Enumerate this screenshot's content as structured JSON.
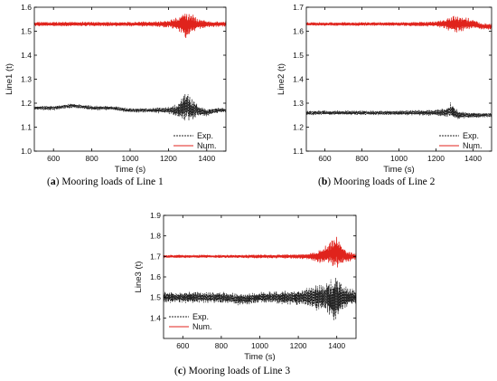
{
  "chart_data": [
    {
      "type": "line",
      "panel_label": "a",
      "caption": "Mooring loads of Line 1",
      "xlabel": "Time (s)",
      "ylabel": "Line1 (t)",
      "xlim": [
        500,
        1500
      ],
      "ylim": [
        1.0,
        1.6
      ],
      "xticks": [
        600,
        800,
        1000,
        1200,
        1400
      ],
      "yticks": [
        1.0,
        1.1,
        1.2,
        1.3,
        1.4,
        1.5,
        1.6
      ],
      "legend_position": "bottom-right",
      "series": [
        {
          "name": "Exp.",
          "style": "dashed",
          "color": "#222222",
          "x": [
            500,
            600,
            700,
            800,
            900,
            1000,
            1100,
            1200,
            1250,
            1280,
            1300,
            1320,
            1350,
            1400,
            1450,
            1500
          ],
          "mean": [
            1.18,
            1.18,
            1.19,
            1.18,
            1.18,
            1.17,
            1.17,
            1.17,
            1.17,
            1.18,
            1.19,
            1.17,
            1.17,
            1.16,
            1.17,
            1.17
          ],
          "amplitude": [
            0.01,
            0.01,
            0.01,
            0.01,
            0.01,
            0.01,
            0.01,
            0.015,
            0.03,
            0.06,
            0.07,
            0.05,
            0.03,
            0.015,
            0.012,
            0.01
          ]
        },
        {
          "name": "Num.",
          "style": "solid",
          "color": "#e0231c",
          "x": [
            500,
            600,
            700,
            800,
            900,
            1000,
            1100,
            1200,
            1250,
            1280,
            1300,
            1320,
            1350,
            1400,
            1450,
            1500
          ],
          "mean": [
            1.53,
            1.53,
            1.53,
            1.53,
            1.53,
            1.53,
            1.53,
            1.53,
            1.53,
            1.53,
            1.52,
            1.53,
            1.53,
            1.53,
            1.53,
            1.53
          ],
          "amplitude": [
            0.01,
            0.01,
            0.01,
            0.01,
            0.01,
            0.01,
            0.012,
            0.015,
            0.03,
            0.055,
            0.06,
            0.045,
            0.025,
            0.015,
            0.012,
            0.012
          ]
        }
      ]
    },
    {
      "type": "line",
      "panel_label": "b",
      "caption": "Mooring loads of Line 2",
      "xlabel": "Time (s)",
      "ylabel": "Line2 (t)",
      "xlim": [
        500,
        1500
      ],
      "ylim": [
        1.1,
        1.7
      ],
      "xticks": [
        600,
        800,
        1000,
        1200,
        1400
      ],
      "yticks": [
        1.1,
        1.2,
        1.3,
        1.4,
        1.5,
        1.6,
        1.7
      ],
      "legend_position": "bottom-right",
      "series": [
        {
          "name": "Exp.",
          "style": "dashed",
          "color": "#222222",
          "x": [
            500,
            600,
            700,
            800,
            900,
            1000,
            1100,
            1200,
            1250,
            1280,
            1300,
            1320,
            1350,
            1400,
            1450,
            1500
          ],
          "mean": [
            1.26,
            1.26,
            1.26,
            1.26,
            1.26,
            1.26,
            1.26,
            1.26,
            1.26,
            1.27,
            1.26,
            1.25,
            1.25,
            1.25,
            1.25,
            1.25
          ],
          "amplitude": [
            0.01,
            0.01,
            0.01,
            0.01,
            0.01,
            0.01,
            0.012,
            0.015,
            0.02,
            0.035,
            0.03,
            0.02,
            0.015,
            0.012,
            0.01,
            0.01
          ]
        },
        {
          "name": "Num.",
          "style": "solid",
          "color": "#e0231c",
          "x": [
            500,
            600,
            700,
            800,
            900,
            1000,
            1100,
            1200,
            1250,
            1280,
            1300,
            1320,
            1350,
            1400,
            1450,
            1500
          ],
          "mean": [
            1.63,
            1.63,
            1.63,
            1.63,
            1.63,
            1.63,
            1.63,
            1.63,
            1.63,
            1.63,
            1.63,
            1.63,
            1.63,
            1.63,
            1.62,
            1.62
          ],
          "amplitude": [
            0.008,
            0.008,
            0.008,
            0.008,
            0.008,
            0.008,
            0.01,
            0.012,
            0.02,
            0.035,
            0.04,
            0.035,
            0.03,
            0.02,
            0.015,
            0.012
          ]
        }
      ]
    },
    {
      "type": "line",
      "panel_label": "c",
      "caption": "Mooring loads of Line 3",
      "xlabel": "Time (s)",
      "ylabel": "Line3 (t)",
      "xlim": [
        500,
        1500
      ],
      "ylim": [
        1.3,
        1.9
      ],
      "xticks": [
        600,
        800,
        1000,
        1200,
        1400
      ],
      "yticks": [
        1.4,
        1.5,
        1.6,
        1.7,
        1.8,
        1.9
      ],
      "legend_position": "bottom-left",
      "series": [
        {
          "name": "Exp.",
          "style": "dashed",
          "color": "#222222",
          "x": [
            500,
            600,
            700,
            800,
            900,
            1000,
            1100,
            1200,
            1250,
            1300,
            1350,
            1380,
            1400,
            1420,
            1450,
            1500
          ],
          "mean": [
            1.5,
            1.5,
            1.5,
            1.5,
            1.49,
            1.5,
            1.5,
            1.5,
            1.5,
            1.5,
            1.5,
            1.49,
            1.49,
            1.5,
            1.5,
            1.5
          ],
          "amplitude": [
            0.03,
            0.03,
            0.03,
            0.03,
            0.03,
            0.03,
            0.035,
            0.04,
            0.05,
            0.07,
            0.08,
            0.11,
            0.12,
            0.09,
            0.05,
            0.04
          ]
        },
        {
          "name": "Num.",
          "style": "solid",
          "color": "#e0231c",
          "x": [
            500,
            600,
            700,
            800,
            900,
            1000,
            1100,
            1200,
            1250,
            1300,
            1350,
            1380,
            1400,
            1420,
            1450,
            1500
          ],
          "mean": [
            1.7,
            1.7,
            1.7,
            1.7,
            1.7,
            1.7,
            1.7,
            1.7,
            1.7,
            1.7,
            1.71,
            1.72,
            1.72,
            1.71,
            1.7,
            1.7
          ],
          "amplitude": [
            0.008,
            0.008,
            0.008,
            0.008,
            0.008,
            0.01,
            0.01,
            0.012,
            0.015,
            0.03,
            0.05,
            0.07,
            0.08,
            0.06,
            0.03,
            0.015
          ]
        }
      ]
    }
  ]
}
